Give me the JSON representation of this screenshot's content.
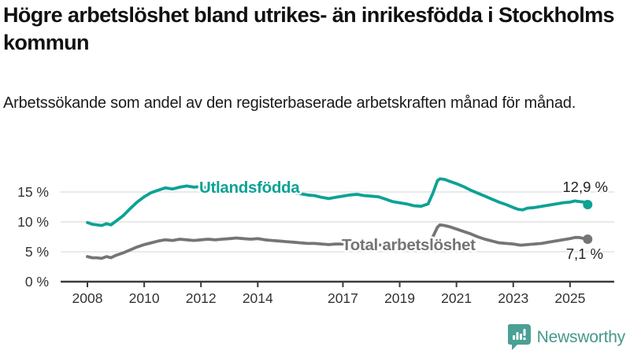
{
  "header": {
    "title": "Högre arbetslöshet bland utrikes- än inrikesfödda i Stockholms kommun",
    "subtitle": "Arbetssökande som andel av den registerbaserade arbetskraften månad för månad."
  },
  "footer": {
    "brand": "Newsworthy",
    "logo_icon": "bar-chart-speech-bubble-icon"
  },
  "colors": {
    "accent_teal": "#0ca295",
    "series_gray": "#757575",
    "axis": "#3b3b3b",
    "gridline": "#dcdcdc",
    "tick_text": "#333333",
    "value_label_text": "#222222",
    "brand_teal": "#45988c"
  },
  "chart_data": {
    "type": "line",
    "title": "Högre arbetslöshet bland utrikes- än inrikesfödda i Stockholms kommun",
    "subtitle": "Arbetssökande som andel av den registerbaserade arbetskraften månad för månad.",
    "unit": "%",
    "xlim": [
      2008,
      2026.5
    ],
    "ylim": [
      0,
      18
    ],
    "grid": "horizontal",
    "x_ticks": [
      2008,
      2010,
      2012,
      2014,
      2017,
      2019,
      2021,
      2023,
      2025
    ],
    "y_ticks": [
      {
        "value": 0,
        "label": "0 %"
      },
      {
        "value": 5,
        "label": "5 %"
      },
      {
        "value": 10,
        "label": "10 %"
      },
      {
        "value": 15,
        "label": "15 %"
      }
    ],
    "series": [
      {
        "name": "Utlandsfödda",
        "color": "#0ca295",
        "end_label": "12,9 %",
        "end_value": 12.9,
        "points": [
          [
            2008.0,
            9.9
          ],
          [
            2008.17,
            9.6
          ],
          [
            2008.33,
            9.5
          ],
          [
            2008.5,
            9.4
          ],
          [
            2008.67,
            9.7
          ],
          [
            2008.83,
            9.5
          ],
          [
            2009.0,
            10.1
          ],
          [
            2009.25,
            11.0
          ],
          [
            2009.5,
            12.2
          ],
          [
            2009.75,
            13.3
          ],
          [
            2010.0,
            14.2
          ],
          [
            2010.25,
            14.9
          ],
          [
            2010.5,
            15.3
          ],
          [
            2010.75,
            15.7
          ],
          [
            2011.0,
            15.5
          ],
          [
            2011.25,
            15.8
          ],
          [
            2011.5,
            16.0
          ],
          [
            2011.75,
            15.8
          ],
          [
            2012.0,
            15.9
          ],
          [
            2012.25,
            15.7
          ],
          [
            2012.5,
            15.8
          ],
          [
            2012.75,
            15.6
          ],
          [
            2013.0,
            15.5
          ],
          [
            2013.25,
            15.6
          ],
          [
            2013.5,
            15.4
          ],
          [
            2013.75,
            15.5
          ],
          [
            2014.0,
            15.3
          ],
          [
            2014.25,
            15.4
          ],
          [
            2014.5,
            15.2
          ],
          [
            2014.75,
            15.0
          ],
          [
            2015.0,
            15.1
          ],
          [
            2015.25,
            14.9
          ],
          [
            2015.5,
            14.7
          ],
          [
            2015.75,
            14.5
          ],
          [
            2016.0,
            14.4
          ],
          [
            2016.25,
            14.1
          ],
          [
            2016.5,
            13.9
          ],
          [
            2016.75,
            14.1
          ],
          [
            2017.0,
            14.3
          ],
          [
            2017.25,
            14.5
          ],
          [
            2017.5,
            14.6
          ],
          [
            2017.75,
            14.4
          ],
          [
            2018.0,
            14.3
          ],
          [
            2018.25,
            14.2
          ],
          [
            2018.5,
            13.8
          ],
          [
            2018.75,
            13.4
          ],
          [
            2019.0,
            13.2
          ],
          [
            2019.25,
            13.0
          ],
          [
            2019.5,
            12.7
          ],
          [
            2019.75,
            12.6
          ],
          [
            2020.0,
            13.0
          ],
          [
            2020.17,
            14.8
          ],
          [
            2020.33,
            16.9
          ],
          [
            2020.42,
            17.2
          ],
          [
            2020.58,
            17.1
          ],
          [
            2020.75,
            16.8
          ],
          [
            2021.0,
            16.4
          ],
          [
            2021.25,
            15.9
          ],
          [
            2021.5,
            15.3
          ],
          [
            2021.75,
            14.8
          ],
          [
            2022.0,
            14.3
          ],
          [
            2022.25,
            13.8
          ],
          [
            2022.5,
            13.3
          ],
          [
            2022.75,
            12.9
          ],
          [
            2023.0,
            12.4
          ],
          [
            2023.17,
            12.1
          ],
          [
            2023.33,
            12.0
          ],
          [
            2023.5,
            12.3
          ],
          [
            2023.75,
            12.4
          ],
          [
            2024.0,
            12.6
          ],
          [
            2024.25,
            12.8
          ],
          [
            2024.5,
            13.0
          ],
          [
            2024.75,
            13.2
          ],
          [
            2025.0,
            13.3
          ],
          [
            2025.17,
            13.5
          ],
          [
            2025.33,
            13.4
          ],
          [
            2025.5,
            13.3
          ],
          [
            2025.58,
            12.9
          ]
        ]
      },
      {
        "name": "Total arbetslöshet",
        "color": "#757575",
        "end_label": "7,1 %",
        "end_value": 7.1,
        "points": [
          [
            2008.0,
            4.2
          ],
          [
            2008.17,
            4.0
          ],
          [
            2008.33,
            4.0
          ],
          [
            2008.5,
            3.9
          ],
          [
            2008.67,
            4.2
          ],
          [
            2008.83,
            4.0
          ],
          [
            2009.0,
            4.4
          ],
          [
            2009.25,
            4.8
          ],
          [
            2009.5,
            5.3
          ],
          [
            2009.75,
            5.8
          ],
          [
            2010.0,
            6.2
          ],
          [
            2010.25,
            6.5
          ],
          [
            2010.5,
            6.8
          ],
          [
            2010.75,
            7.0
          ],
          [
            2011.0,
            6.9
          ],
          [
            2011.25,
            7.1
          ],
          [
            2011.5,
            7.0
          ],
          [
            2011.75,
            6.9
          ],
          [
            2012.0,
            7.0
          ],
          [
            2012.25,
            7.1
          ],
          [
            2012.5,
            7.0
          ],
          [
            2012.75,
            7.1
          ],
          [
            2013.0,
            7.2
          ],
          [
            2013.25,
            7.3
          ],
          [
            2013.5,
            7.2
          ],
          [
            2013.75,
            7.1
          ],
          [
            2014.0,
            7.2
          ],
          [
            2014.25,
            7.0
          ],
          [
            2014.5,
            6.9
          ],
          [
            2014.75,
            6.8
          ],
          [
            2015.0,
            6.7
          ],
          [
            2015.25,
            6.6
          ],
          [
            2015.5,
            6.5
          ],
          [
            2015.75,
            6.4
          ],
          [
            2016.0,
            6.4
          ],
          [
            2016.25,
            6.3
          ],
          [
            2016.5,
            6.2
          ],
          [
            2016.75,
            6.3
          ],
          [
            2017.0,
            6.3
          ],
          [
            2017.5,
            6.4
          ],
          [
            2018.0,
            6.2
          ],
          [
            2018.5,
            6.1
          ],
          [
            2019.0,
            6.0
          ],
          [
            2019.5,
            5.9
          ],
          [
            2019.75,
            5.9
          ],
          [
            2020.0,
            6.1
          ],
          [
            2020.17,
            7.5
          ],
          [
            2020.33,
            9.1
          ],
          [
            2020.42,
            9.5
          ],
          [
            2020.58,
            9.4
          ],
          [
            2020.75,
            9.2
          ],
          [
            2021.0,
            8.8
          ],
          [
            2021.25,
            8.4
          ],
          [
            2021.5,
            8.0
          ],
          [
            2021.75,
            7.5
          ],
          [
            2022.0,
            7.1
          ],
          [
            2022.25,
            6.8
          ],
          [
            2022.5,
            6.5
          ],
          [
            2022.75,
            6.4
          ],
          [
            2023.0,
            6.3
          ],
          [
            2023.25,
            6.1
          ],
          [
            2023.5,
            6.2
          ],
          [
            2023.75,
            6.3
          ],
          [
            2024.0,
            6.4
          ],
          [
            2024.25,
            6.6
          ],
          [
            2024.5,
            6.8
          ],
          [
            2024.75,
            7.0
          ],
          [
            2025.0,
            7.2
          ],
          [
            2025.17,
            7.4
          ],
          [
            2025.33,
            7.4
          ],
          [
            2025.5,
            7.2
          ],
          [
            2025.58,
            7.1
          ]
        ]
      }
    ]
  }
}
